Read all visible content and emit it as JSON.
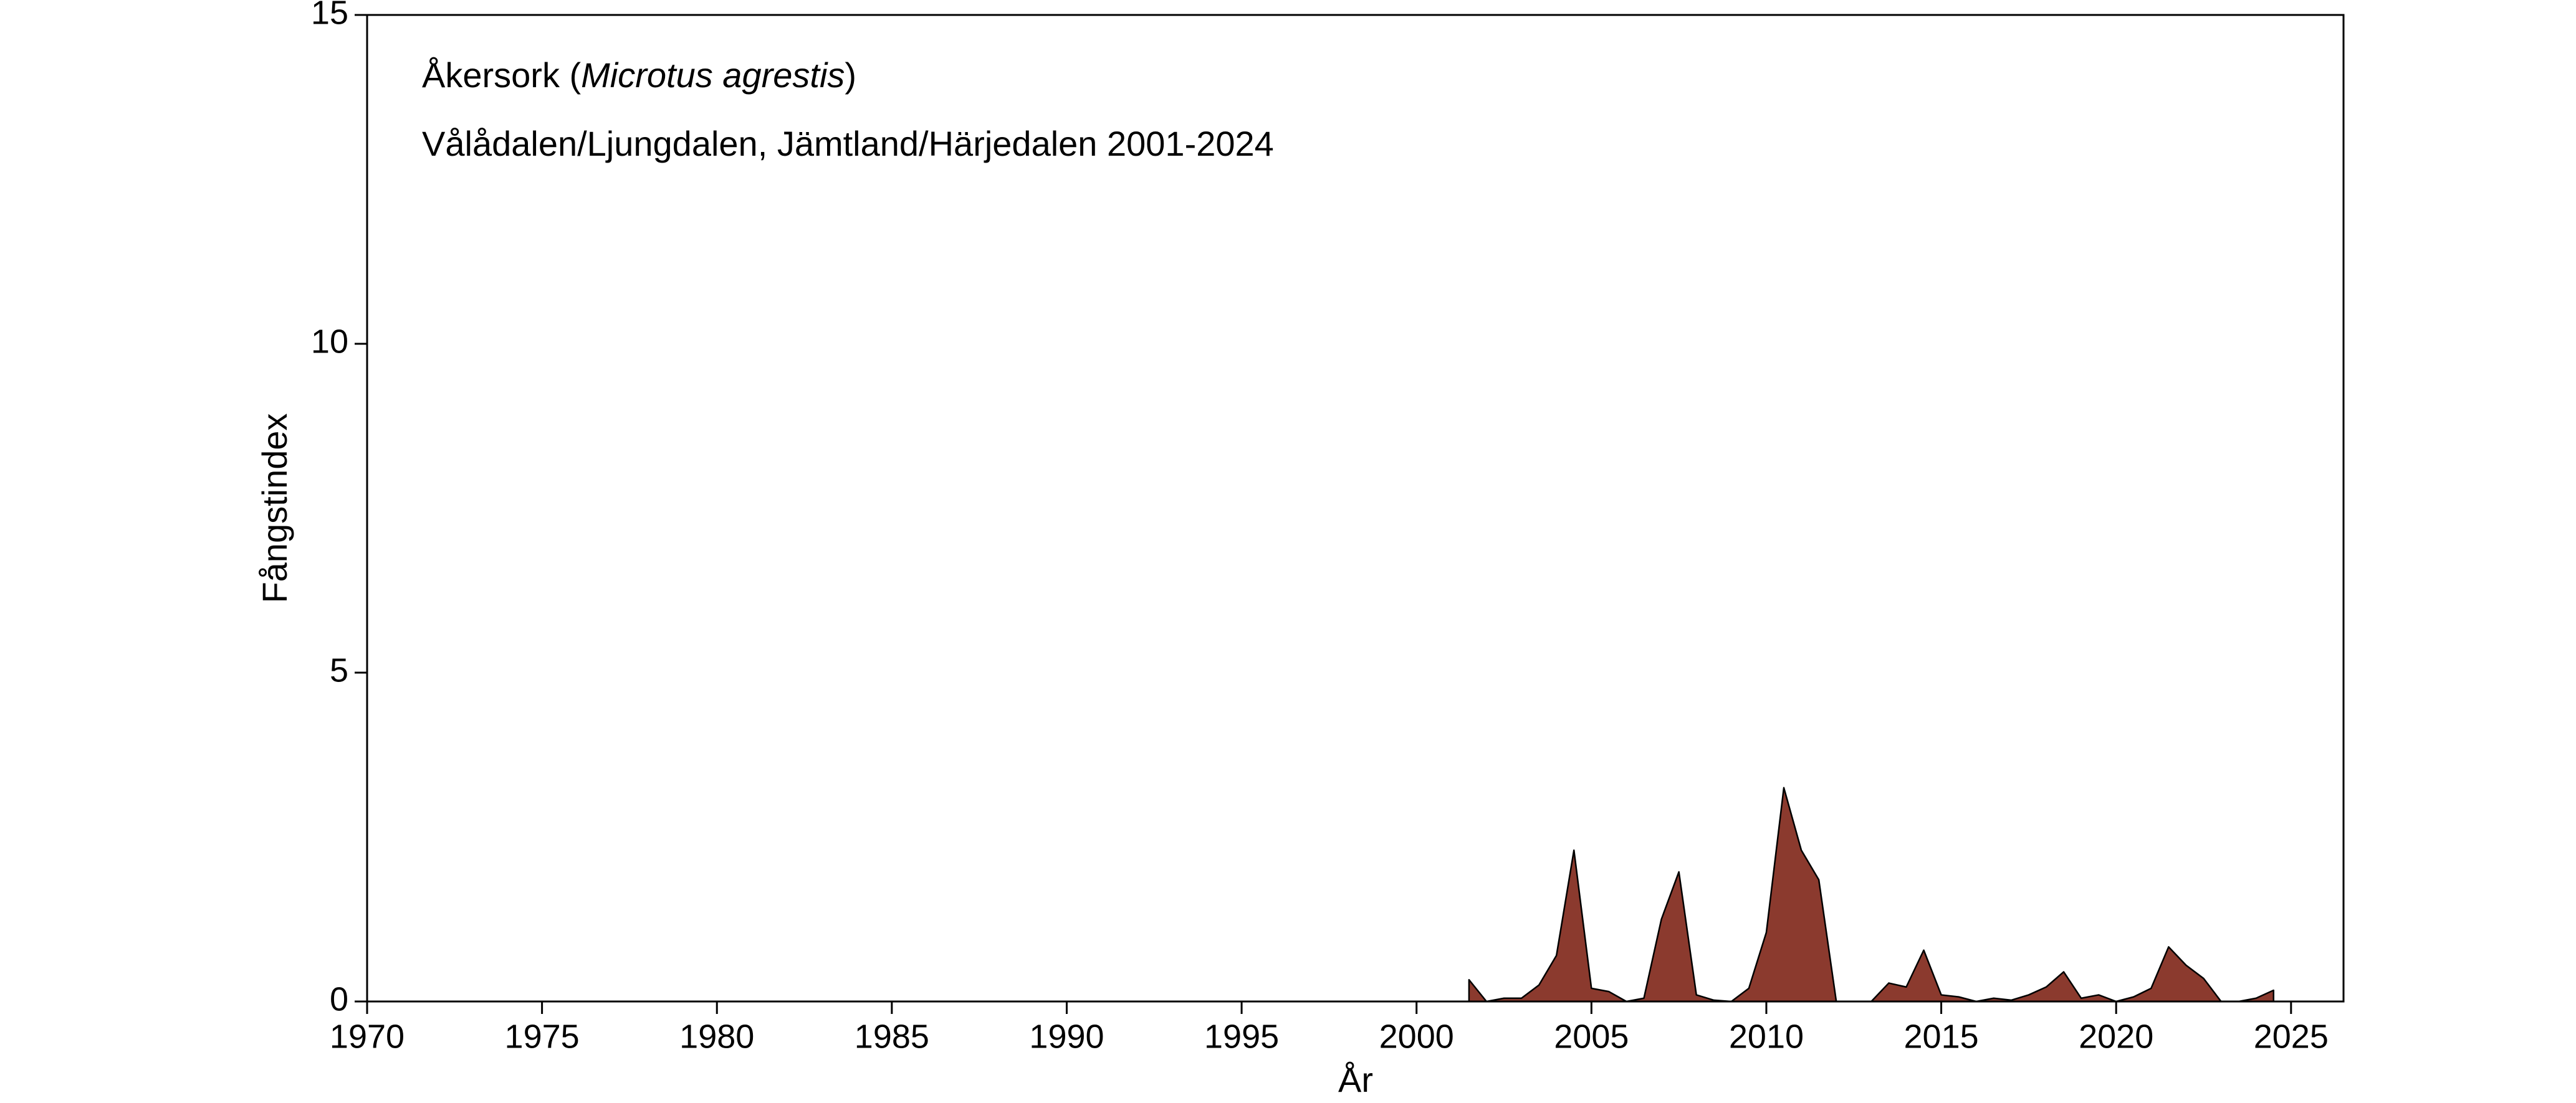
{
  "chart_data": {
    "type": "area",
    "title_parts": [
      "Åkersork (",
      "Microtus agrestis",
      ")"
    ],
    "subtitle": "Vålådalen/Ljungdalen, Jämtland/Härjedalen 2001-2024",
    "xlabel": "År",
    "ylabel": "Fångstindex",
    "x": [
      2001.5,
      2002,
      2002.5,
      2003,
      2003.5,
      2004,
      2004.5,
      2005,
      2005.5,
      2006,
      2006.5,
      2007,
      2007.5,
      2008,
      2008.5,
      2009,
      2009.5,
      2010,
      2010.5,
      2011,
      2011.5,
      2012,
      2012.5,
      2013,
      2013.5,
      2014,
      2014.5,
      2015,
      2015.5,
      2016,
      2016.5,
      2017,
      2017.5,
      2018,
      2018.5,
      2019,
      2019.5,
      2020,
      2020.5,
      2021,
      2021.5,
      2022,
      2022.5,
      2023,
      2023.5,
      2024,
      2024.5
    ],
    "series": [
      {
        "name": "Åkersork",
        "color": "#8b3a2e",
        "values": [
          0.33,
          0,
          0.05,
          0.05,
          0.25,
          0.7,
          2.3,
          0.2,
          0.15,
          0,
          0.05,
          1.25,
          1.97,
          0.1,
          0.02,
          0,
          0.2,
          1.05,
          3.25,
          2.3,
          1.85,
          0,
          0,
          0,
          0.28,
          0.22,
          0.78,
          0.1,
          0.07,
          0,
          0.05,
          0.02,
          0.1,
          0.22,
          0.45,
          0.05,
          0.1,
          0,
          0.07,
          0.2,
          0.83,
          0.55,
          0.35,
          0,
          0,
          0.05,
          0.17
        ]
      }
    ],
    "xlim": [
      1970,
      2026.5
    ],
    "ylim": [
      0,
      15
    ],
    "xticks": [
      1970,
      1975,
      1980,
      1985,
      1990,
      1995,
      2000,
      2005,
      2010,
      2015,
      2020,
      2025
    ],
    "yticks": [
      0,
      5,
      10,
      15
    ]
  }
}
